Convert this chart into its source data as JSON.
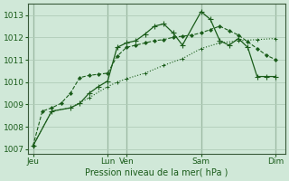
{
  "background_color": "#d0e8d8",
  "grid_color": "#b0ccb8",
  "line_color": "#1a5c1a",
  "title": "Pression niveau de la mer( hPa )",
  "ylim": [
    1006.8,
    1013.5
  ],
  "yticks": [
    1007,
    1008,
    1009,
    1010,
    1011,
    1012,
    1013
  ],
  "xtick_labels": [
    "Jeu",
    "Lun",
    "Ven",
    "Sam",
    "Dim"
  ],
  "xtick_positions": [
    0,
    8,
    10,
    18,
    26
  ],
  "xlim": [
    -0.5,
    27
  ],
  "vlines_x": [
    0,
    8,
    10,
    18,
    26
  ],
  "series1_x": [
    0,
    1,
    2,
    3,
    4,
    5,
    6,
    7,
    8,
    9,
    10,
    11,
    12,
    13,
    14,
    15,
    16,
    17,
    18,
    19,
    20,
    21,
    22,
    23,
    24,
    25,
    26
  ],
  "series1_y": [
    1007.15,
    1008.7,
    1008.85,
    1009.05,
    1009.5,
    1010.2,
    1010.3,
    1010.35,
    1010.4,
    1011.15,
    1011.55,
    1011.65,
    1011.75,
    1011.85,
    1011.9,
    1012.0,
    1012.05,
    1012.1,
    1012.2,
    1012.35,
    1012.5,
    1012.3,
    1012.1,
    1011.8,
    1011.5,
    1011.2,
    1011.0
  ],
  "series2_x": [
    0,
    2,
    4,
    5,
    6,
    7,
    8,
    9,
    10,
    11,
    12,
    13,
    14,
    15,
    16,
    18,
    19,
    20,
    21,
    22,
    23,
    24,
    25,
    26
  ],
  "series2_y": [
    1007.15,
    1008.7,
    1008.85,
    1009.05,
    1009.5,
    1009.8,
    1010.05,
    1011.55,
    1011.75,
    1011.85,
    1012.15,
    1012.5,
    1012.6,
    1012.2,
    1011.65,
    1013.15,
    1012.8,
    1011.85,
    1011.65,
    1011.95,
    1011.55,
    1010.25,
    1010.25,
    1010.25
  ],
  "series3_x": [
    0,
    2,
    4,
    6,
    8,
    9,
    10,
    12,
    14,
    16,
    18,
    20,
    22,
    24,
    26
  ],
  "series3_y": [
    1007.15,
    1008.7,
    1008.85,
    1009.3,
    1009.8,
    1010.0,
    1010.15,
    1010.4,
    1010.75,
    1011.05,
    1011.5,
    1011.75,
    1011.85,
    1011.9,
    1011.95
  ]
}
